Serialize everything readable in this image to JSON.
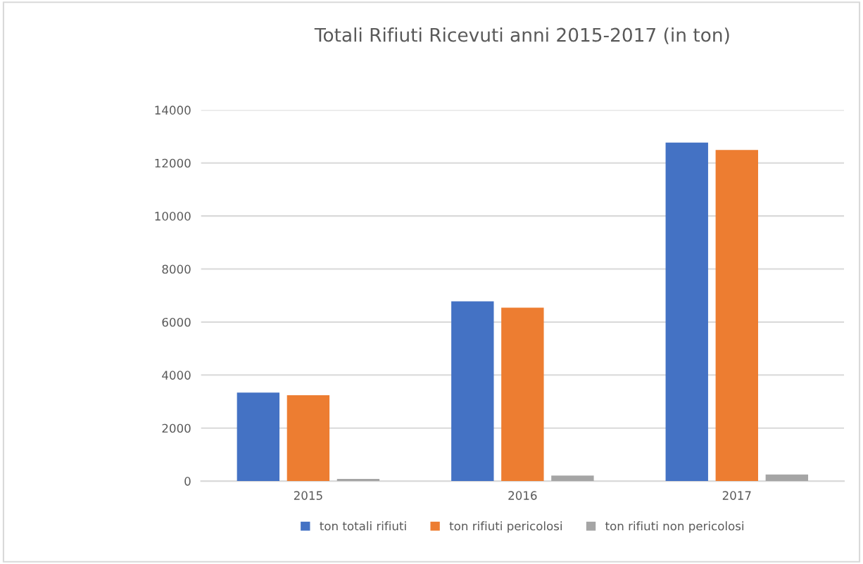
{
  "chart_data": {
    "type": "bar",
    "title": "Totali Rifiuti Ricevuti anni 2015-2017 (in ton)",
    "categories": [
      "2015",
      "2016",
      "2017"
    ],
    "series": [
      {
        "name": "ton totali rifiuti",
        "color": "#4472c4",
        "values": [
          3340,
          6780,
          12770
        ]
      },
      {
        "name": "ton rifiuti pericolosi",
        "color": "#ed7d31",
        "values": [
          3240,
          6540,
          12490
        ]
      },
      {
        "name": "ton rifiuti non pericolosi",
        "color": "#a5a5a5",
        "values": [
          80,
          210,
          250
        ]
      }
    ],
    "ylim": [
      0,
      14000
    ],
    "yticks": [
      0,
      2000,
      4000,
      6000,
      8000,
      10000,
      12000,
      14000
    ],
    "grid": "y",
    "legend": "bottom"
  }
}
